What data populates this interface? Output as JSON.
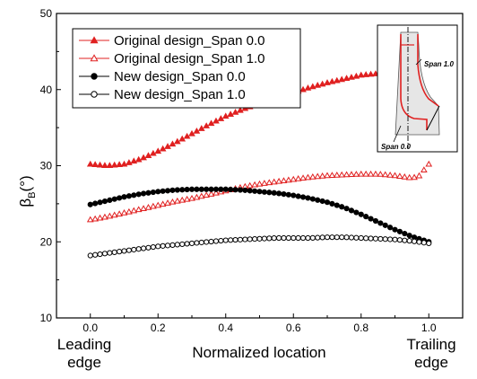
{
  "chart_data": {
    "type": "scatter",
    "title": "",
    "xlabel": "Normalized location",
    "ylabel": "β",
    "ylabel_sub": "B",
    "ylabel_unit": "(°)",
    "xlim": [
      -0.1,
      1.1
    ],
    "ylim": [
      10,
      50
    ],
    "x_ticks": [
      "0.0",
      "0.2",
      "0.4",
      "0.6",
      "0.8",
      "1.0"
    ],
    "y_ticks": [
      "10",
      "20",
      "30",
      "40",
      "50"
    ],
    "x_end_labels": {
      "left": [
        "Leading",
        "edge"
      ],
      "right": [
        "Trailing",
        "edge"
      ]
    },
    "grid": false,
    "legend_position": "top-left",
    "series": [
      {
        "name": "Original design_Span 0.0",
        "color": "#e02020",
        "marker": "filled-triangle",
        "x": [
          0.0,
          0.05,
          0.1,
          0.15,
          0.2,
          0.25,
          0.3,
          0.35,
          0.4,
          0.45,
          0.5,
          0.55,
          0.6,
          0.65,
          0.7,
          0.75,
          0.8,
          0.85,
          0.9,
          0.95,
          1.0
        ],
        "y": [
          30.2,
          30.0,
          30.2,
          30.9,
          31.9,
          33.0,
          34.2,
          35.4,
          36.5,
          37.4,
          38.2,
          38.9,
          39.6,
          40.3,
          40.9,
          41.4,
          41.9,
          42.1,
          42.0,
          41.6,
          40.9
        ]
      },
      {
        "name": "Original design_Span 1.0",
        "color": "#e02020",
        "marker": "open-triangle",
        "x": [
          0.0,
          0.05,
          0.1,
          0.15,
          0.2,
          0.25,
          0.3,
          0.35,
          0.4,
          0.45,
          0.5,
          0.55,
          0.6,
          0.65,
          0.7,
          0.75,
          0.8,
          0.85,
          0.9,
          0.95,
          0.97,
          1.0
        ],
        "y": [
          22.9,
          23.3,
          23.8,
          24.3,
          24.8,
          25.3,
          25.7,
          26.2,
          26.7,
          27.2,
          27.6,
          27.9,
          28.2,
          28.5,
          28.7,
          28.8,
          28.9,
          28.9,
          28.7,
          28.4,
          28.6,
          30.2
        ]
      },
      {
        "name": "New design_Span 0.0",
        "color": "#000000",
        "marker": "filled-circle",
        "x": [
          0.0,
          0.05,
          0.1,
          0.15,
          0.2,
          0.25,
          0.3,
          0.35,
          0.4,
          0.45,
          0.5,
          0.55,
          0.6,
          0.65,
          0.7,
          0.75,
          0.8,
          0.85,
          0.9,
          0.95,
          1.0
        ],
        "y": [
          24.9,
          25.4,
          25.9,
          26.3,
          26.6,
          26.8,
          26.9,
          26.9,
          26.9,
          26.8,
          26.6,
          26.4,
          26.1,
          25.7,
          25.2,
          24.5,
          23.6,
          22.6,
          21.6,
          20.7,
          20.0
        ]
      },
      {
        "name": "New design_Span 1.0",
        "color": "#000000",
        "marker": "open-circle",
        "x": [
          0.0,
          0.05,
          0.1,
          0.15,
          0.2,
          0.25,
          0.3,
          0.35,
          0.4,
          0.45,
          0.5,
          0.55,
          0.6,
          0.65,
          0.7,
          0.75,
          0.8,
          0.85,
          0.9,
          0.95,
          1.0
        ],
        "y": [
          18.2,
          18.5,
          18.8,
          19.1,
          19.4,
          19.6,
          19.8,
          20.0,
          20.2,
          20.3,
          20.4,
          20.5,
          20.5,
          20.5,
          20.6,
          20.6,
          20.5,
          20.4,
          20.3,
          20.1,
          19.8
        ]
      }
    ],
    "inset": {
      "labels": [
        "Span 1.0",
        "Span 0.0"
      ]
    }
  }
}
